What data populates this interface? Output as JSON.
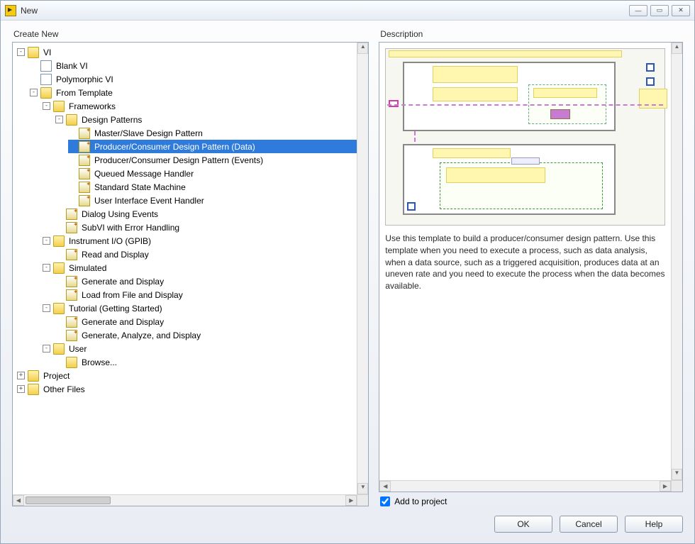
{
  "window": {
    "title": "New"
  },
  "panels": {
    "left_label": "Create New",
    "right_label": "Description"
  },
  "tree": {
    "vi": "VI",
    "blank_vi": "Blank VI",
    "poly_vi": "Polymorphic VI",
    "from_template": "From Template",
    "frameworks": "Frameworks",
    "design_patterns": "Design Patterns",
    "master_slave": "Master/Slave Design Pattern",
    "pc_data": "Producer/Consumer Design Pattern (Data)",
    "pc_events": "Producer/Consumer Design Pattern (Events)",
    "qmh": "Queued Message Handler",
    "ssm": "Standard State Machine",
    "uieh": "User Interface Event Handler",
    "dialog_events": "Dialog Using Events",
    "subvi_err": "SubVI with Error Handling",
    "instr_io": "Instrument I/O (GPIB)",
    "read_display": "Read and Display",
    "simulated": "Simulated",
    "gen_display": "Generate and Display",
    "load_file": "Load from File and Display",
    "tutorial": "Tutorial (Getting Started)",
    "tut_gd": "Generate and Display",
    "tut_gad": "Generate, Analyze, and Display",
    "user": "User",
    "browse": "Browse...",
    "project": "Project",
    "other_files": "Other Files"
  },
  "description": {
    "text": "Use this template to build a producer/consumer design pattern. Use this template when you need to execute a process, such as data analysis, when a data source, such as a triggered acquisition, produces data at an uneven rate and you need to execute the process when the data becomes available."
  },
  "add_to_project": {
    "label": "Add to project",
    "checked": true
  },
  "buttons": {
    "ok": "OK",
    "cancel": "Cancel",
    "help": "Help"
  },
  "colors": {
    "selection": "#2f7bdc",
    "window_border": "#9aa7b8"
  }
}
